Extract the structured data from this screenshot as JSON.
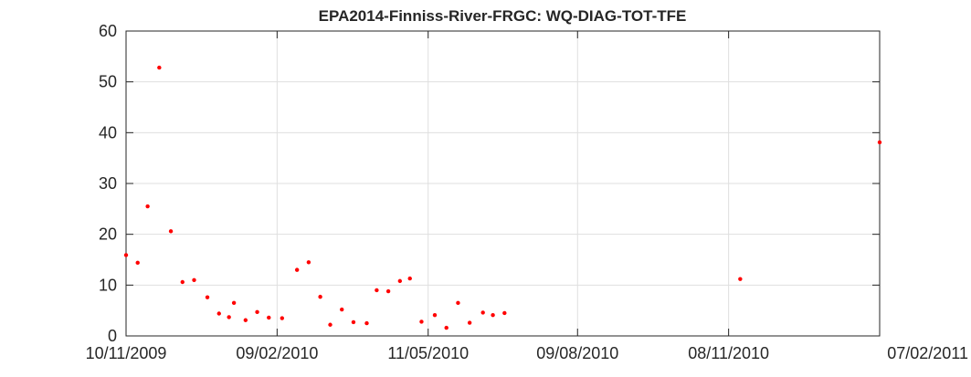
{
  "chart_data": {
    "type": "scatter",
    "title": "EPA2014-Finniss-River-FRGC: WQ-DIAG-TOT-TFE",
    "xlabel": "",
    "ylabel": "",
    "x_axis": {
      "kind": "date",
      "range": [
        "2009-11-10",
        "2011-02-07"
      ],
      "tick_labels": [
        "10/11/2009",
        "09/02/2010",
        "11/05/2010",
        "09/08/2010",
        "08/11/2010",
        "07/02/2011"
      ],
      "ticks": [
        "2009-11-10",
        "2010-02-09",
        "2010-05-11",
        "2010-08-09",
        "2010-11-08",
        "2011-02-07"
      ]
    },
    "y_axis": {
      "range": [
        0,
        60
      ],
      "ticks": [
        0,
        10,
        20,
        30,
        40,
        50,
        60
      ]
    },
    "grid": true,
    "marker_color": "#ff0000",
    "points": [
      {
        "x": "2009-11-10",
        "y": 15.9
      },
      {
        "x": "2009-11-17",
        "y": 14.4
      },
      {
        "x": "2009-11-23",
        "y": 25.5
      },
      {
        "x": "2009-11-30",
        "y": 52.8
      },
      {
        "x": "2009-12-07",
        "y": 20.6
      },
      {
        "x": "2009-12-14",
        "y": 10.6
      },
      {
        "x": "2009-12-21",
        "y": 11.0
      },
      {
        "x": "2009-12-29",
        "y": 7.6
      },
      {
        "x": "2010-01-05",
        "y": 4.4
      },
      {
        "x": "2010-01-11",
        "y": 3.7
      },
      {
        "x": "2010-01-14",
        "y": 6.5
      },
      {
        "x": "2010-01-21",
        "y": 3.1
      },
      {
        "x": "2010-01-28",
        "y": 4.7
      },
      {
        "x": "2010-02-04",
        "y": 3.6
      },
      {
        "x": "2010-02-12",
        "y": 3.5
      },
      {
        "x": "2010-02-21",
        "y": 13.0
      },
      {
        "x": "2010-02-28",
        "y": 14.5
      },
      {
        "x": "2010-03-07",
        "y": 7.7
      },
      {
        "x": "2010-03-13",
        "y": 2.2
      },
      {
        "x": "2010-03-20",
        "y": 5.2
      },
      {
        "x": "2010-03-27",
        "y": 2.7
      },
      {
        "x": "2010-04-04",
        "y": 2.5
      },
      {
        "x": "2010-04-10",
        "y": 9.0
      },
      {
        "x": "2010-04-17",
        "y": 8.8
      },
      {
        "x": "2010-04-24",
        "y": 10.8
      },
      {
        "x": "2010-04-30",
        "y": 11.3
      },
      {
        "x": "2010-05-07",
        "y": 2.8
      },
      {
        "x": "2010-05-15",
        "y": 4.1
      },
      {
        "x": "2010-05-22",
        "y": 1.6
      },
      {
        "x": "2010-05-29",
        "y": 6.5
      },
      {
        "x": "2010-06-05",
        "y": 2.6
      },
      {
        "x": "2010-06-13",
        "y": 4.6
      },
      {
        "x": "2010-06-19",
        "y": 4.1
      },
      {
        "x": "2010-06-26",
        "y": 4.5
      },
      {
        "x": "2010-11-15",
        "y": 11.2
      },
      {
        "x": "2011-02-07",
        "y": 38.1
      }
    ]
  }
}
